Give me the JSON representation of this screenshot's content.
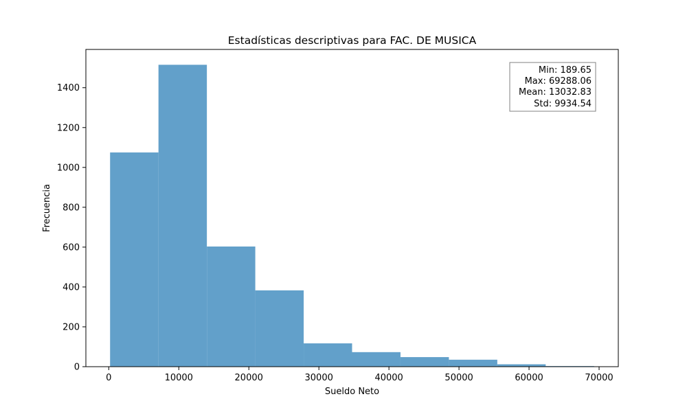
{
  "chart_data": {
    "type": "bar",
    "title": "Estadísticas descriptivas para FAC. DE MUSICA",
    "xlabel": "Sueldo Neto",
    "ylabel": "Frecuencia",
    "bin_edges": [
      189.65,
      7099.49,
      14009.33,
      20919.17,
      27829.01,
      34738.85,
      41648.69,
      48558.53,
      55468.37,
      62378.21,
      69288.06
    ],
    "values": [
      1075,
      1515,
      603,
      383,
      117,
      73,
      48,
      35,
      12,
      3
    ],
    "xlim": [
      -3265,
      72743
    ],
    "ylim": [
      0,
      1592
    ],
    "xticks": [
      0,
      10000,
      20000,
      30000,
      40000,
      50000,
      60000,
      70000
    ],
    "yticks": [
      0,
      200,
      400,
      600,
      800,
      1000,
      1200,
      1400
    ],
    "bar_color": "#62a0ca",
    "grid": false,
    "stats_box": {
      "lines": [
        "Min: 189.65",
        "Max: 69288.06",
        "Mean: 13032.83",
        "Std: 9934.54"
      ],
      "placement": "top-right"
    }
  }
}
